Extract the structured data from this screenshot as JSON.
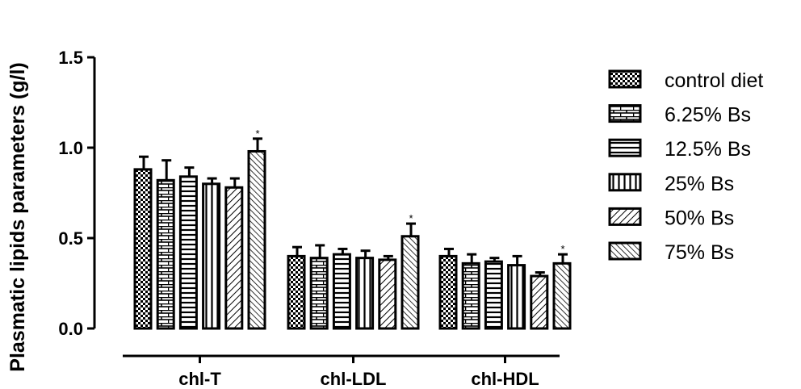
{
  "chart_data": {
    "type": "bar",
    "title": "",
    "ylabel": "Plasmatic lipids parameters (g/l)",
    "xlabel": "",
    "ylim": [
      0,
      1.5
    ],
    "yticks": [
      "0.0",
      "0.5",
      "1.0",
      "1.5"
    ],
    "categories": [
      "chl-T",
      "chl-LDL",
      "chl-HDL"
    ],
    "legend_position": "right",
    "significance_marker": "*",
    "series": [
      {
        "name": "control diet",
        "pattern": "checker",
        "values": [
          0.88,
          0.4,
          0.4
        ],
        "errors": [
          0.07,
          0.05,
          0.04
        ],
        "significant": [
          false,
          false,
          false
        ]
      },
      {
        "name": "6.25% Bs",
        "pattern": "brick",
        "values": [
          0.82,
          0.39,
          0.36
        ],
        "errors": [
          0.11,
          0.07,
          0.05
        ],
        "significant": [
          false,
          false,
          false
        ]
      },
      {
        "name": "12.5% Bs",
        "pattern": "horizontal",
        "values": [
          0.84,
          0.41,
          0.37
        ],
        "errors": [
          0.05,
          0.03,
          0.02
        ],
        "significant": [
          false,
          false,
          false
        ]
      },
      {
        "name": "25% Bs",
        "pattern": "vertical",
        "values": [
          0.8,
          0.39,
          0.35
        ],
        "errors": [
          0.03,
          0.04,
          0.05
        ],
        "significant": [
          false,
          false,
          false
        ]
      },
      {
        "name": "50% Bs",
        "pattern": "diagonal-up",
        "values": [
          0.78,
          0.38,
          0.29
        ],
        "errors": [
          0.05,
          0.02,
          0.02
        ],
        "significant": [
          false,
          false,
          false
        ]
      },
      {
        "name": "75% Bs",
        "pattern": "diagonal-down",
        "values": [
          0.98,
          0.51,
          0.36
        ],
        "errors": [
          0.07,
          0.07,
          0.05
        ],
        "significant": [
          true,
          true,
          true
        ]
      }
    ]
  }
}
